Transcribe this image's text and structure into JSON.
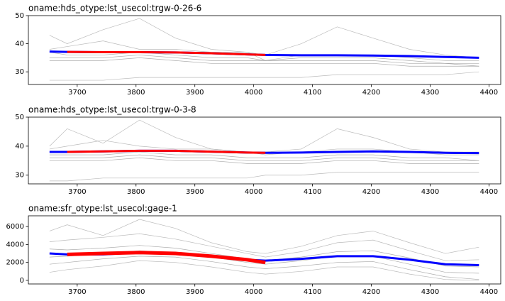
{
  "chart_data": [
    {
      "type": "line",
      "title": "oname:hds_otype:lst_usecol:trgw-0-26-6",
      "x": [
        3653,
        3683,
        3744,
        3806,
        3867,
        3928,
        3989,
        4020,
        4081,
        4142,
        4203,
        4265,
        4326,
        4383
      ],
      "xlim": [
        3617,
        4420
      ],
      "xticks": [
        3700,
        3800,
        3900,
        4000,
        4100,
        4200,
        4300,
        4400
      ],
      "ylim": [
        25.5,
        50
      ],
      "yticks": [
        30,
        40,
        50
      ],
      "series": [
        {
          "color": "#aaaaaa",
          "values": [
            43,
            40,
            45,
            49,
            42,
            38,
            37,
            36,
            40,
            46,
            42,
            38,
            36,
            35
          ]
        },
        {
          "color": "#aaaaaa",
          "values": [
            38,
            39,
            41,
            38,
            38,
            37,
            37,
            34,
            36,
            36,
            36,
            35,
            34,
            34
          ]
        },
        {
          "color": "#999999",
          "values": [
            37,
            36,
            36,
            37,
            36,
            35,
            35,
            34,
            35,
            35,
            35,
            34,
            33,
            33
          ]
        },
        {
          "color": "#999999",
          "values": [
            35,
            35,
            35,
            36,
            35,
            34,
            34,
            34,
            34,
            34,
            34,
            33,
            33,
            32
          ]
        },
        {
          "color": "#999999",
          "values": [
            34,
            34,
            34,
            35,
            34,
            33,
            33,
            33,
            33,
            33,
            33,
            32,
            32,
            32
          ]
        },
        {
          "color": "#aaaaaa",
          "values": [
            27,
            27,
            27,
            28,
            28,
            28,
            28,
            28,
            28,
            29,
            29,
            29,
            29,
            30
          ]
        },
        {
          "color": "#0000ff",
          "values": [
            37.2,
            37.1,
            37.0,
            37.0,
            36.9,
            36.6,
            36.2,
            36.0,
            35.9,
            35.9,
            35.8,
            35.6,
            35.3,
            35.0
          ]
        },
        {
          "color": "#ff0000",
          "values": [
            null,
            37.1,
            37.0,
            37.0,
            36.9,
            36.6,
            36.2,
            36.0,
            null,
            null,
            null,
            null,
            null,
            null
          ]
        }
      ]
    },
    {
      "type": "line",
      "title": "oname:hds_otype:lst_usecol:trgw-0-3-8",
      "x": [
        3653,
        3683,
        3744,
        3806,
        3867,
        3928,
        3989,
        4020,
        4081,
        4142,
        4203,
        4265,
        4326,
        4383
      ],
      "xlim": [
        3617,
        4420
      ],
      "xticks": [
        3700,
        3800,
        3900,
        4000,
        4100,
        4200,
        4300,
        4400
      ],
      "ylim": [
        27,
        50
      ],
      "yticks": [
        30,
        40,
        50
      ],
      "series": [
        {
          "color": "#aaaaaa",
          "values": [
            40,
            46,
            41,
            49,
            43,
            39,
            38,
            38,
            39,
            46,
            43,
            39,
            38,
            38
          ]
        },
        {
          "color": "#aaaaaa",
          "values": [
            39,
            40,
            42,
            40,
            39,
            39,
            38,
            37,
            38,
            39,
            39,
            38,
            37,
            37
          ]
        },
        {
          "color": "#999999",
          "values": [
            37,
            37,
            37,
            38,
            37,
            37,
            36,
            36,
            36,
            37,
            37,
            36,
            36,
            35
          ]
        },
        {
          "color": "#999999",
          "values": [
            36,
            36,
            36,
            37,
            36,
            36,
            35,
            35,
            35,
            36,
            36,
            35,
            35,
            35
          ]
        },
        {
          "color": "#999999",
          "values": [
            35,
            35,
            35,
            36,
            35,
            35,
            34,
            34,
            34,
            35,
            35,
            34,
            34,
            34
          ]
        },
        {
          "color": "#aaaaaa",
          "values": [
            28,
            28,
            29,
            29,
            29,
            29,
            29,
            30,
            30,
            31,
            31,
            31,
            31,
            31
          ]
        },
        {
          "color": "#0000ff",
          "values": [
            38.0,
            38.0,
            38.2,
            38.4,
            38.4,
            38.1,
            37.8,
            37.7,
            37.8,
            38.0,
            38.2,
            38.0,
            37.7,
            37.6
          ]
        },
        {
          "color": "#ff0000",
          "values": [
            null,
            38.0,
            38.2,
            38.4,
            38.4,
            38.1,
            37.8,
            37.7,
            null,
            null,
            null,
            null,
            null,
            null
          ]
        }
      ]
    },
    {
      "type": "line",
      "title": "oname:sfr_otype:lst_usecol:gage-1",
      "x": [
        3653,
        3683,
        3744,
        3806,
        3867,
        3928,
        3989,
        4020,
        4081,
        4142,
        4203,
        4265,
        4326,
        4383
      ],
      "xlim": [
        3617,
        4420
      ],
      "xticks": [
        3700,
        3800,
        3900,
        4000,
        4100,
        4200,
        4300,
        4400
      ],
      "ylim": [
        -400,
        7200
      ],
      "yticks": [
        0,
        2000,
        4000,
        6000
      ],
      "series": [
        {
          "color": "#aaaaaa",
          "values": [
            5500,
            6200,
            5000,
            6800,
            5800,
            4200,
            3200,
            3000,
            3800,
            5000,
            5500,
            4200,
            3000,
            3700
          ]
        },
        {
          "color": "#aaaaaa",
          "values": [
            4300,
            4500,
            4800,
            5200,
            4600,
            3800,
            3000,
            2600,
            3200,
            4200,
            4500,
            3300,
            2200,
            2300
          ]
        },
        {
          "color": "#999999",
          "values": [
            3500,
            3400,
            3600,
            3900,
            3600,
            3000,
            2400,
            2200,
            2600,
            3200,
            3300,
            2500,
            1600,
            1500
          ]
        },
        {
          "color": "#999999",
          "values": [
            2600,
            2700,
            3000,
            3300,
            3100,
            2600,
            2000,
            1800,
            2200,
            2700,
            2700,
            1800,
            900,
            800
          ]
        },
        {
          "color": "#999999",
          "values": [
            1800,
            2000,
            2400,
            2700,
            2600,
            2100,
            1500,
            1300,
            1600,
            2000,
            2100,
            1200,
            400,
            100
          ]
        },
        {
          "color": "#aaaaaa",
          "values": [
            900,
            1200,
            1600,
            2200,
            2000,
            1500,
            900,
            700,
            1000,
            1500,
            1500,
            700,
            100,
            0
          ]
        },
        {
          "color": "#0000ff",
          "values": [
            3000,
            2900,
            2900,
            3100,
            3000,
            2700,
            2300,
            2200,
            2400,
            2700,
            2700,
            2300,
            1800,
            1700
          ]
        },
        {
          "color": "#ff0000",
          "values": [
            null,
            2900,
            3000,
            3100,
            3000,
            2700,
            2300,
            2000,
            null,
            null,
            null,
            null,
            null,
            null
          ]
        }
      ]
    }
  ]
}
